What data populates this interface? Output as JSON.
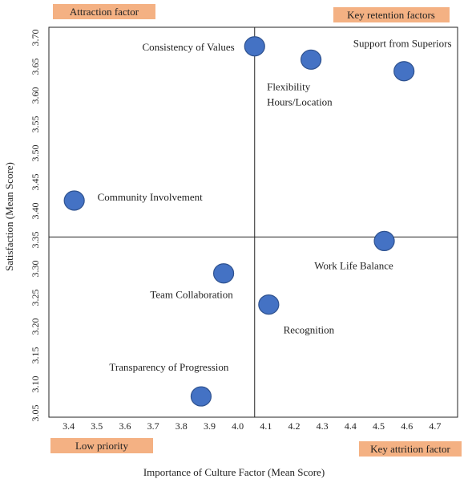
{
  "chart_data": {
    "type": "scatter",
    "xlabel": "Importance of Culture Factor (Mean Score)",
    "ylabel": "Satisfaction (Mean Score)",
    "xlim": [
      3.33,
      4.78
    ],
    "ylim": [
      3.043,
      3.718
    ],
    "x_ticks": [
      3.4,
      3.5,
      3.6,
      3.7,
      3.8,
      3.9,
      4.0,
      4.1,
      4.2,
      4.3,
      4.4,
      4.5,
      4.6,
      4.7
    ],
    "y_ticks": [
      3.05,
      3.1,
      3.15,
      3.2,
      3.25,
      3.3,
      3.35,
      3.4,
      3.45,
      3.5,
      3.55,
      3.6,
      3.65,
      3.7
    ],
    "x_tick_labels": [
      "3.4",
      "3.5",
      "3.6",
      "3.7",
      "3.8",
      "3.9",
      "4.0",
      "4.1",
      "4.2",
      "4.3",
      "4.4",
      "4.5",
      "4.6",
      "4.7"
    ],
    "y_tick_labels": [
      "3.05",
      "3.10",
      "3.15",
      "3.20",
      "3.25",
      "3.30",
      "3.35",
      "3.40",
      "3.45",
      "3.50",
      "3.55",
      "3.60",
      "3.65",
      "3.70"
    ],
    "divider_x": 4.06,
    "divider_y": 3.355,
    "grid": false,
    "marker_color": "#4472C4",
    "marker_edge": "#2F528F",
    "quadrant_color": "#F4B183",
    "points": [
      {
        "label": "Consistency of Values",
        "x": 4.06,
        "y": 3.685
      },
      {
        "label": "Support from Superiors",
        "x": 4.59,
        "y": 3.642
      },
      {
        "label": "Flexibility",
        "label2": "Hours/Location",
        "x": 4.26,
        "y": 3.662
      },
      {
        "label": "Community Involvement",
        "x": 3.42,
        "y": 3.418
      },
      {
        "label": "Work Life Balance",
        "x": 4.52,
        "y": 3.348
      },
      {
        "label": "Team Collaboration",
        "x": 3.95,
        "y": 3.292
      },
      {
        "label": "Recognition",
        "x": 4.11,
        "y": 3.238
      },
      {
        "label": "Transparency of Progression",
        "x": 3.87,
        "y": 3.079
      }
    ],
    "quadrants": {
      "top_left": "Attraction factor",
      "top_right": "Key retention factors",
      "bottom_left": "Low priority",
      "bottom_right": "Key attrition factor"
    }
  }
}
